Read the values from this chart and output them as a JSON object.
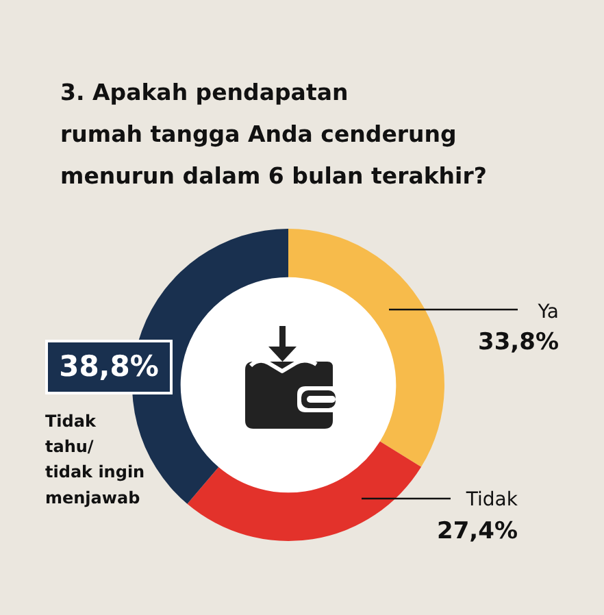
{
  "chart_data": {
    "type": "donut",
    "title": "3. Apakah pendapatan rumah tangga Anda cenderung menurun dalam 6 bulan terakhir?",
    "categories": [
      "Ya",
      "Tidak",
      "Tidak tahu/ tidak ingin menjawab"
    ],
    "values": [
      33.8,
      27.4,
      38.8
    ],
    "colors": [
      "#f7bb4b",
      "#e3322b",
      "#19304f"
    ],
    "value_labels": [
      "33,8%",
      "27,4%",
      "38,8%"
    ]
  }
}
